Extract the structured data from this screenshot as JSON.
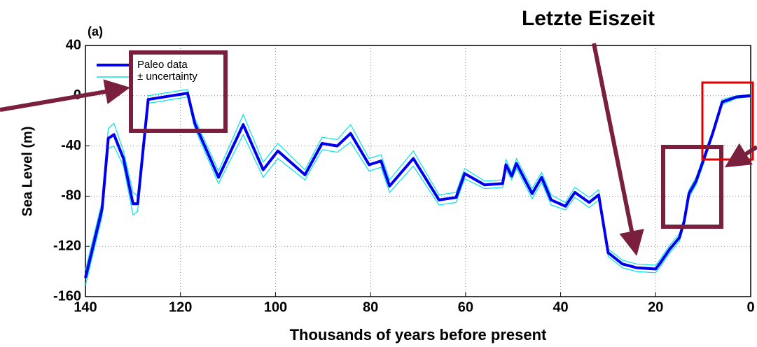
{
  "chart_data": {
    "type": "line",
    "title": "Letzte Eiszeit",
    "panel_label": "(a)",
    "xlabel": "Thousands of years before present",
    "ylabel": "Sea Level (m)",
    "x": [
      140,
      136.5,
      135.2,
      134,
      132,
      130,
      129,
      126.8,
      118.5,
      117,
      112,
      106.8,
      102.6,
      99.5,
      93.8,
      90.2,
      87,
      84.2,
      80.3,
      77.8,
      76,
      71,
      65.6,
      62,
      60.2,
      56,
      52.2,
      51.5,
      50.3,
      49.3,
      46,
      44,
      42,
      39,
      37,
      34,
      32,
      30,
      27,
      24,
      20,
      19,
      17,
      15,
      14,
      13,
      11.5,
      10,
      8,
      6,
      3,
      0
    ],
    "series": [
      {
        "name": "Paleo data",
        "color": "#0000ee",
        "values": [
          -145,
          -90,
          -34,
          -31,
          -50,
          -86,
          -86,
          -3,
          2,
          -22,
          -65,
          -23,
          -59,
          -44,
          -63,
          -38,
          -40,
          -30,
          -55,
          -52,
          -72,
          -50,
          -83,
          -81,
          -62,
          -71,
          -70,
          -55,
          -64,
          -54,
          -78,
          -65,
          -83,
          -88,
          -77,
          -85,
          -79,
          -125,
          -134,
          -137,
          -138,
          -133,
          -122,
          -113,
          -100,
          -78,
          -68,
          -52,
          -30,
          -5,
          -1,
          0
        ]
      },
      {
        "name": "± uncertainty",
        "color": "#00e5e5",
        "values": [
          6,
          6,
          8,
          9,
          6,
          9,
          6,
          3,
          3,
          4,
          5,
          8,
          6,
          6,
          4,
          5,
          5,
          7,
          5,
          5,
          5,
          6,
          4,
          4,
          4,
          3,
          3,
          4,
          3,
          4,
          4,
          4,
          4,
          3,
          4,
          4,
          4,
          3,
          3,
          3,
          3,
          3,
          3,
          3,
          3,
          3,
          3,
          3,
          2,
          2,
          1,
          1
        ]
      }
    ],
    "xlim": [
      140,
      0
    ],
    "xticks": [
      140,
      120,
      100,
      80,
      60,
      40,
      20,
      0
    ],
    "ylim": [
      -160,
      40
    ],
    "yticks": [
      40,
      0,
      -40,
      -80,
      -120,
      -160
    ],
    "grid": true,
    "legend": "upper left"
  }
}
